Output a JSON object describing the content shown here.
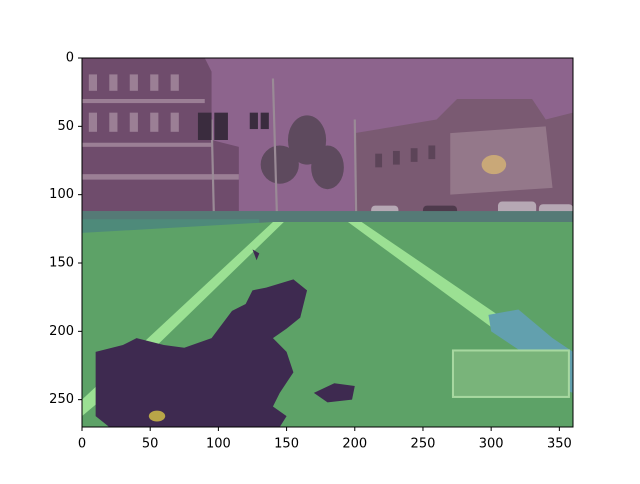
{
  "chart_data": {
    "type": "image",
    "xlim": [
      0,
      360
    ],
    "ylim": [
      0,
      270
    ],
    "y_inverted": true,
    "xticks": [
      0,
      50,
      100,
      150,
      200,
      250,
      300,
      350
    ],
    "yticks": [
      0,
      50,
      100,
      150,
      200,
      250
    ]
  }
}
